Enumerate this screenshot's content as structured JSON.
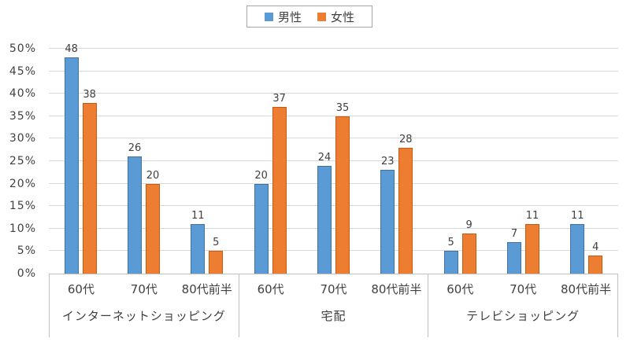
{
  "chart_data": {
    "type": "bar",
    "title": "",
    "xlabel": "",
    "ylabel": "",
    "ylim": [
      0,
      50
    ],
    "y_tick_step": 5,
    "y_ticks": [
      "0%",
      "5%",
      "10%",
      "15%",
      "20%",
      "25%",
      "30%",
      "35%",
      "40%",
      "45%",
      "50%"
    ],
    "grid": true,
    "legend_position": "top-center",
    "bar_labels_shown": true,
    "series": [
      {
        "name": "男性",
        "color": "#5B9BD5",
        "border_color": "#41719C"
      },
      {
        "name": "女性",
        "color": "#ED7D31",
        "border_color": "#C55A11"
      }
    ],
    "groups": [
      {
        "label": "インターネットショッピング",
        "categories": [
          "60代",
          "70代",
          "80代前半"
        ],
        "values": {
          "男性": [
            48,
            26,
            11
          ],
          "女性": [
            38,
            20,
            5
          ]
        }
      },
      {
        "label": "宅配",
        "categories": [
          "60代",
          "70代",
          "80代前半"
        ],
        "values": {
          "男性": [
            20,
            24,
            23
          ],
          "女性": [
            37,
            35,
            28
          ]
        }
      },
      {
        "label": "テレビショッピング",
        "categories": [
          "60代",
          "70代",
          "80代前半"
        ],
        "values": {
          "男性": [
            5,
            7,
            11
          ],
          "女性": [
            9,
            11,
            4
          ]
        }
      }
    ],
    "colors": {
      "gridline": "#D9D9D9",
      "axis_line": "#BFBFBF",
      "text": "#404040",
      "legend_border": "#A6A6A6",
      "background": "#FFFFFF"
    }
  }
}
